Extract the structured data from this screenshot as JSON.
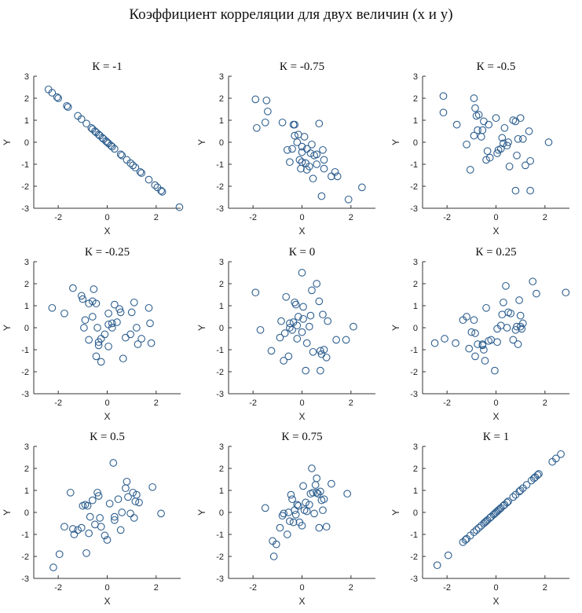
{
  "title": "Коэффициент корреляции для двух величин (x и y)",
  "style": {
    "marker_color": "#2e5f8f"
  },
  "chart_data": [
    {
      "type": "scatter",
      "title": "К = -1",
      "xlabel": "X",
      "ylabel": "Y",
      "xlim": [
        -3,
        3
      ],
      "ylim": [
        -3,
        3
      ],
      "xticks": [
        -2,
        0,
        2
      ],
      "yticks": [
        -3,
        -2,
        -1,
        0,
        1,
        2,
        3
      ],
      "x": [
        -2.4,
        -2.25,
        -2.05,
        -2.0,
        -1.65,
        -1.6,
        -1.2,
        -1.05,
        -0.85,
        -0.65,
        -0.6,
        -0.5,
        -0.45,
        -0.35,
        -0.3,
        -0.2,
        -0.15,
        -0.05,
        0.0,
        0.05,
        0.15,
        0.2,
        0.3,
        0.55,
        0.6,
        0.8,
        0.95,
        1.05,
        1.15,
        1.35,
        1.4,
        1.7,
        1.95,
        2.05,
        2.2,
        2.25,
        2.95
      ],
      "y": [
        2.4,
        2.25,
        2.05,
        2.0,
        1.65,
        1.6,
        1.2,
        1.05,
        0.85,
        0.65,
        0.6,
        0.5,
        0.45,
        0.35,
        0.3,
        0.2,
        0.15,
        0.05,
        0.0,
        -0.05,
        -0.15,
        -0.2,
        -0.3,
        -0.55,
        -0.6,
        -0.8,
        -0.95,
        -1.05,
        -1.15,
        -1.35,
        -1.4,
        -1.7,
        -1.95,
        -2.05,
        -2.2,
        -2.25,
        -2.95
      ]
    },
    {
      "type": "scatter",
      "title": "К = -0.75",
      "xlabel": "X",
      "ylabel": "Y",
      "xlim": [
        -3,
        3
      ],
      "ylim": [
        -3,
        3
      ],
      "xticks": [
        -2,
        0,
        2
      ],
      "yticks": [
        -3,
        -2,
        -1,
        0,
        1,
        2,
        3
      ],
      "x": [
        -1.9,
        -1.45,
        -1.85,
        -1.5,
        -1.4,
        -0.8,
        -0.3,
        -0.35,
        -0.15,
        0.7,
        -0.6,
        -0.2,
        0.0,
        -0.4,
        -0.3,
        0.1,
        0.2,
        0.0,
        0.35,
        0.5,
        -0.1,
        0.6,
        0.15,
        0.9,
        0.3,
        -0.05,
        0.2,
        0.85,
        0.45,
        -0.5,
        0.6,
        0.9,
        1.35,
        1.45,
        1.2,
        0.8,
        1.9,
        2.45,
        0.0,
        0.4
      ],
      "y": [
        1.95,
        1.9,
        0.65,
        0.9,
        1.4,
        0.9,
        0.8,
        0.8,
        0.35,
        0.85,
        -0.35,
        0.0,
        -0.2,
        -0.3,
        0.3,
        0.25,
        -0.3,
        -0.45,
        -0.5,
        -0.6,
        -0.8,
        -0.55,
        -0.95,
        -0.8,
        -1.1,
        -1.2,
        -1.25,
        -0.35,
        -1.65,
        -0.9,
        -1.0,
        -1.2,
        -1.35,
        -1.55,
        -1.55,
        -2.45,
        -2.6,
        -2.05,
        -0.9,
        -0.1
      ]
    },
    {
      "type": "scatter",
      "title": "К = -0.5",
      "xlabel": "X",
      "ylabel": "Y",
      "xlim": [
        -3,
        3
      ],
      "ylim": [
        -3,
        3
      ],
      "xticks": [
        -2,
        0,
        2
      ],
      "yticks": [
        -3,
        -2,
        -1,
        0,
        1,
        2,
        3
      ],
      "x": [
        -2.15,
        -2.15,
        -1.6,
        -0.9,
        -0.85,
        -0.8,
        -0.7,
        -1.2,
        -0.9,
        -0.75,
        -0.55,
        -0.5,
        -0.35,
        -0.3,
        -0.25,
        0.0,
        0.05,
        0.25,
        0.35,
        0.45,
        0.5,
        0.7,
        0.8,
        0.9,
        1.1,
        1.2,
        1.35,
        1.4,
        2.15,
        0.8,
        1.4,
        0.3,
        -1.05,
        -0.4,
        0.1,
        0.55,
        -0.6,
        0.85,
        0.2,
        1.0
      ],
      "y": [
        2.1,
        1.35,
        0.8,
        2.0,
        1.55,
        1.2,
        1.25,
        -0.1,
        0.3,
        0.55,
        0.55,
        0.95,
        -0.4,
        0.8,
        -0.7,
        1.1,
        -0.5,
        0.2,
        0.65,
        -0.15,
        0.0,
        1.0,
        0.95,
        0.15,
        0.15,
        -1.05,
        0.5,
        -0.85,
        0.0,
        -2.2,
        -2.2,
        -0.05,
        -1.25,
        -0.8,
        -0.35,
        -1.1,
        0.25,
        -0.6,
        -0.3,
        1.1
      ]
    },
    {
      "type": "scatter",
      "title": "К = -0.25",
      "xlabel": "X",
      "ylabel": "Y",
      "xlim": [
        -3,
        3
      ],
      "ylim": [
        -3,
        3
      ],
      "xticks": [
        -2,
        0,
        2
      ],
      "yticks": [
        -3,
        -2,
        -1,
        0,
        1,
        2,
        3
      ],
      "x": [
        -2.25,
        -1.75,
        -1.4,
        -1.05,
        -1.0,
        -0.9,
        -0.75,
        -0.6,
        -0.45,
        -0.4,
        -0.35,
        -0.25,
        -0.25,
        -0.1,
        0.05,
        0.05,
        0.2,
        0.3,
        0.4,
        0.5,
        0.55,
        0.75,
        0.95,
        1.1,
        1.2,
        1.25,
        1.4,
        1.7,
        1.75,
        1.8,
        -0.55,
        -0.35,
        -0.6,
        0.05,
        0.2,
        -0.95,
        -0.75,
        -0.45,
        0.65,
        1.0
      ],
      "y": [
        0.9,
        0.65,
        1.8,
        1.45,
        1.3,
        0.35,
        1.1,
        1.2,
        1.1,
        0.0,
        -0.65,
        -0.5,
        -1.55,
        -0.3,
        0.15,
        0.65,
        0.0,
        1.05,
        0.25,
        0.85,
        0.7,
        -0.45,
        -0.3,
        1.15,
        0.0,
        -0.75,
        -0.5,
        0.9,
        0.2,
        -0.7,
        1.75,
        -0.8,
        0.5,
        -0.85,
        0.2,
        0.0,
        -0.55,
        -1.3,
        -1.4,
        0.7
      ]
    },
    {
      "type": "scatter",
      "title": "К = 0",
      "xlabel": "X",
      "ylabel": "Y",
      "xlim": [
        -3,
        3
      ],
      "ylim": [
        -3,
        3
      ],
      "xticks": [
        -2,
        0,
        2
      ],
      "yticks": [
        -3,
        -2,
        -1,
        0,
        1,
        2,
        3
      ],
      "x": [
        -1.9,
        -1.7,
        -1.25,
        -0.9,
        -0.85,
        -0.75,
        -0.65,
        -0.55,
        -0.5,
        -0.4,
        -0.35,
        -0.3,
        -0.25,
        -0.2,
        -0.15,
        0.0,
        0.0,
        0.05,
        0.05,
        0.15,
        0.2,
        0.3,
        0.35,
        0.45,
        0.6,
        0.7,
        0.75,
        0.75,
        0.8,
        0.9,
        1.0,
        1.05,
        1.4,
        1.8,
        2.1,
        -0.2,
        0.4,
        -0.5,
        0.85,
        -0.7
      ],
      "y": [
        1.6,
        -0.1,
        -1.05,
        -0.45,
        0.3,
        -1.5,
        1.4,
        -1.3,
        0.2,
        -0.1,
        0.25,
        1.15,
        1.05,
        -0.5,
        0.5,
        2.5,
        -0.2,
        0.95,
        0.4,
        -1.95,
        -0.7,
        0.05,
        0.55,
        -1.1,
        2.0,
        1.2,
        -1.95,
        -1.05,
        -1.2,
        -1.0,
        -1.35,
        0.3,
        -0.55,
        -0.55,
        0.05,
        0.1,
        1.7,
        0.0,
        0.6,
        -0.25
      ]
    },
    {
      "type": "scatter",
      "title": "К = 0.25",
      "xlabel": "X",
      "ylabel": "Y",
      "xlim": [
        -3,
        3
      ],
      "ylim": [
        -3,
        3
      ],
      "xticks": [
        -2,
        0,
        2
      ],
      "yticks": [
        -3,
        -2,
        -1,
        0,
        1,
        2,
        3
      ],
      "x": [
        -2.5,
        -2.1,
        -1.65,
        -1.35,
        -1.2,
        -1.1,
        -1.0,
        -0.9,
        -0.85,
        -0.75,
        -0.55,
        -0.5,
        -0.45,
        -0.4,
        -0.3,
        -0.2,
        -0.05,
        0.05,
        0.2,
        0.3,
        0.4,
        0.45,
        0.5,
        0.6,
        0.7,
        0.85,
        0.9,
        0.95,
        1.0,
        1.05,
        1.1,
        1.5,
        1.65,
        2.85,
        -0.55,
        0.25,
        -0.85,
        0.05,
        0.8,
        1.0
      ],
      "y": [
        -0.7,
        -0.5,
        -0.7,
        0.35,
        0.5,
        -0.95,
        -0.2,
        0.35,
        -1.3,
        -0.75,
        -0.75,
        -1.0,
        -1.5,
        0.9,
        -0.6,
        -0.55,
        -1.95,
        -0.05,
        0.1,
        1.15,
        1.9,
        0.0,
        0.7,
        0.65,
        -0.55,
        0.05,
        -0.75,
        1.25,
        0.05,
        -0.05,
        0.2,
        2.1,
        1.55,
        1.6,
        -0.8,
        0.6,
        -0.25,
        -0.65,
        -0.1,
        0.55
      ]
    },
    {
      "type": "scatter",
      "title": "К = 0.5",
      "xlabel": "X",
      "ylabel": "Y",
      "xlim": [
        -3,
        3
      ],
      "ylim": [
        -3,
        3
      ],
      "xticks": [
        -2,
        0,
        2
      ],
      "yticks": [
        -3,
        -2,
        -1,
        0,
        1,
        2,
        3
      ],
      "x": [
        -2.2,
        -1.95,
        -1.75,
        -1.5,
        -1.4,
        -1.35,
        -1.2,
        -1.05,
        -1.0,
        -0.9,
        -0.85,
        -0.75,
        -0.7,
        -0.6,
        -0.5,
        -0.4,
        -0.35,
        -0.3,
        -0.25,
        -0.1,
        0.0,
        0.1,
        0.25,
        0.3,
        0.45,
        0.55,
        0.6,
        0.75,
        0.8,
        0.85,
        0.95,
        1.05,
        1.1,
        1.2,
        1.3,
        1.85,
        2.2,
        -0.8,
        0.3,
        1.15
      ],
      "y": [
        -2.5,
        -1.9,
        -0.65,
        0.9,
        -0.75,
        -1.0,
        -0.8,
        -0.7,
        0.3,
        0.35,
        -1.85,
        -0.95,
        -0.2,
        0.55,
        -0.55,
        0.9,
        0.75,
        -0.25,
        -0.65,
        -1.05,
        -1.25,
        0.4,
        2.25,
        -0.35,
        0.6,
        -0.8,
        0.0,
        1.1,
        1.4,
        0.7,
        -0.05,
        0.9,
        -0.25,
        0.8,
        0.45,
        1.15,
        -0.05,
        0.3,
        -0.2,
        0.5
      ]
    },
    {
      "type": "scatter",
      "title": "К = 0.75",
      "xlabel": "X",
      "ylabel": "Y",
      "xlim": [
        -3,
        3
      ],
      "ylim": [
        -3,
        3
      ],
      "xticks": [
        -2,
        0,
        2
      ],
      "yticks": [
        -3,
        -2,
        -1,
        0,
        1,
        2,
        3
      ],
      "x": [
        -1.5,
        -1.2,
        -1.15,
        -1.05,
        -0.9,
        -0.8,
        -0.75,
        -0.6,
        -0.5,
        -0.45,
        -0.4,
        -0.35,
        -0.3,
        -0.2,
        -0.15,
        -0.1,
        0.0,
        0.05,
        0.1,
        0.2,
        0.3,
        0.35,
        0.4,
        0.45,
        0.5,
        0.55,
        0.6,
        0.65,
        0.7,
        0.75,
        0.8,
        0.85,
        0.9,
        1.0,
        1.2,
        1.85,
        -0.25,
        0.15,
        -0.55,
        0.6
      ],
      "y": [
        0.2,
        -1.3,
        -2.0,
        -1.45,
        -0.7,
        -0.15,
        -0.05,
        -1.0,
        -0.4,
        0.8,
        0.6,
        -0.45,
        0.1,
        0.35,
        0.3,
        -0.45,
        -0.6,
        1.2,
        0.1,
        0.05,
        0.35,
        0.85,
        2.0,
        0.9,
        -0.05,
        1.25,
        1.55,
        0.85,
        -0.7,
        0.95,
        0.55,
        0.1,
        0.6,
        -0.65,
        1.3,
        0.85,
        -0.1,
        0.45,
        0.0,
        0.9
      ]
    },
    {
      "type": "scatter",
      "title": "К = 1",
      "xlabel": "X",
      "ylabel": "Y",
      "xlim": [
        -3,
        3
      ],
      "ylim": [
        -3,
        3
      ],
      "xticks": [
        -2,
        0,
        2
      ],
      "yticks": [
        -3,
        -2,
        -1,
        0,
        1,
        2,
        3
      ],
      "x": [
        -2.4,
        -1.95,
        -1.35,
        -1.25,
        -1.2,
        -1.05,
        -0.9,
        -0.8,
        -0.7,
        -0.6,
        -0.5,
        -0.45,
        -0.4,
        -0.35,
        -0.25,
        -0.2,
        -0.1,
        -0.05,
        0.0,
        0.05,
        0.1,
        0.15,
        0.2,
        0.3,
        0.35,
        0.45,
        0.5,
        0.7,
        0.8,
        0.95,
        1.0,
        1.1,
        1.25,
        1.45,
        1.55,
        1.6,
        1.7,
        1.75,
        2.3,
        2.45,
        2.65
      ],
      "y": [
        -2.4,
        -1.95,
        -1.35,
        -1.25,
        -1.2,
        -1.05,
        -0.9,
        -0.8,
        -0.7,
        -0.6,
        -0.5,
        -0.45,
        -0.4,
        -0.35,
        -0.25,
        -0.2,
        -0.1,
        -0.05,
        0.0,
        0.05,
        0.1,
        0.15,
        0.2,
        0.3,
        0.35,
        0.45,
        0.5,
        0.7,
        0.8,
        0.95,
        1.0,
        1.1,
        1.25,
        1.45,
        1.55,
        1.6,
        1.7,
        1.75,
        2.3,
        2.45,
        2.65
      ]
    }
  ]
}
